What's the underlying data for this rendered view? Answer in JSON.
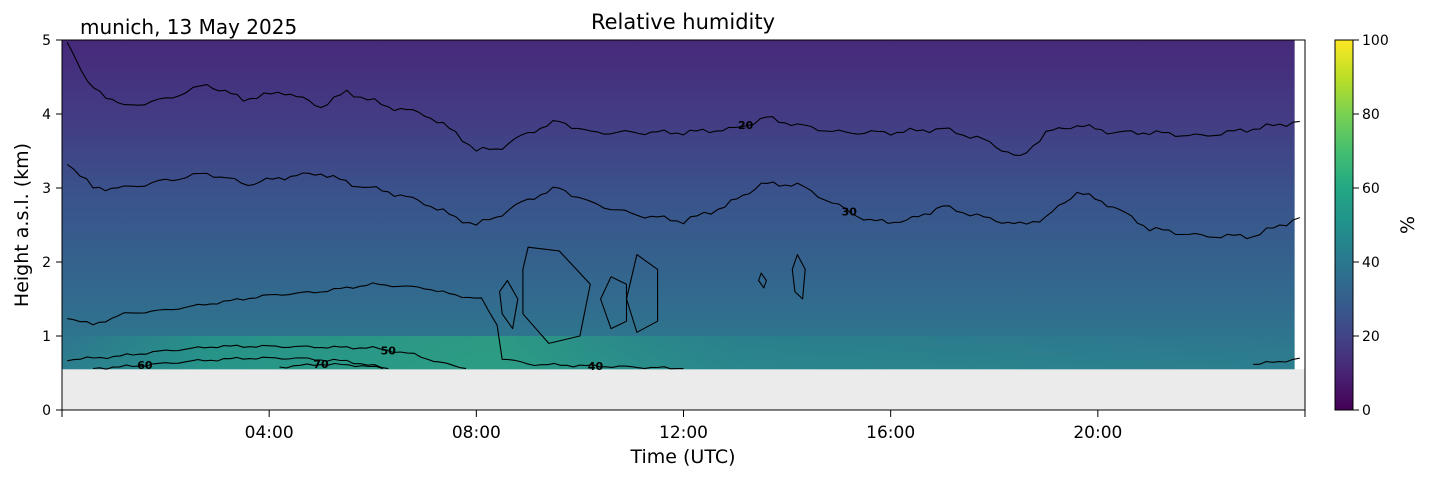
{
  "header": {
    "location_date": "munich, 13 May 2025"
  },
  "chart_data": {
    "type": "heatmap",
    "title": "Relative humidity",
    "xlabel": "Time (UTC)",
    "ylabel": "Height a.s.l. (km)",
    "xlim_hours": [
      0,
      24
    ],
    "ylim_km": [
      0,
      5
    ],
    "x_ticks": [
      {
        "value": 4,
        "label": "04:00"
      },
      {
        "value": 8,
        "label": "08:00"
      },
      {
        "value": 12,
        "label": "12:00"
      },
      {
        "value": 16,
        "label": "16:00"
      },
      {
        "value": 20,
        "label": "20:00"
      }
    ],
    "y_ticks": [
      0,
      1,
      2,
      3,
      4,
      5
    ],
    "data_bottom_km": 0.55,
    "no_data_color": "#ebebeb",
    "colormap": "viridis",
    "colorbar": {
      "label": "%",
      "range": [
        0,
        100
      ],
      "ticks": [
        0,
        20,
        40,
        60,
        80,
        100
      ]
    },
    "contours": [
      {
        "level": 20,
        "label_at_hour": 13.2,
        "points": [
          [
            0.1,
            5.0
          ],
          [
            0.5,
            4.4
          ],
          [
            1.2,
            4.1
          ],
          [
            2.0,
            4.2
          ],
          [
            2.8,
            4.4
          ],
          [
            3.5,
            4.2
          ],
          [
            4.3,
            4.3
          ],
          [
            5.0,
            4.1
          ],
          [
            5.5,
            4.3
          ],
          [
            6.3,
            4.1
          ],
          [
            7.0,
            4.0
          ],
          [
            7.6,
            3.75
          ],
          [
            8.0,
            3.5
          ],
          [
            8.5,
            3.55
          ],
          [
            9.0,
            3.75
          ],
          [
            9.6,
            3.9
          ],
          [
            10.2,
            3.75
          ],
          [
            11.0,
            3.75
          ],
          [
            12.0,
            3.75
          ],
          [
            13.0,
            3.8
          ],
          [
            13.6,
            3.95
          ],
          [
            14.2,
            3.85
          ],
          [
            15.0,
            3.75
          ],
          [
            16.0,
            3.75
          ],
          [
            17.0,
            3.8
          ],
          [
            17.8,
            3.65
          ],
          [
            18.5,
            3.4
          ],
          [
            19.0,
            3.75
          ],
          [
            19.6,
            3.85
          ],
          [
            20.3,
            3.75
          ],
          [
            21.0,
            3.75
          ],
          [
            22.0,
            3.7
          ],
          [
            23.0,
            3.8
          ],
          [
            23.9,
            3.9
          ]
        ]
      },
      {
        "level": 30,
        "label_at_hour": 15.2,
        "points": [
          [
            0.1,
            3.35
          ],
          [
            0.6,
            3.0
          ],
          [
            1.2,
            3.0
          ],
          [
            2.0,
            3.1
          ],
          [
            2.8,
            3.2
          ],
          [
            3.6,
            3.05
          ],
          [
            4.3,
            3.15
          ],
          [
            5.0,
            3.2
          ],
          [
            5.6,
            3.05
          ],
          [
            6.3,
            2.95
          ],
          [
            7.0,
            2.8
          ],
          [
            7.6,
            2.6
          ],
          [
            8.0,
            2.5
          ],
          [
            8.5,
            2.65
          ],
          [
            9.0,
            2.85
          ],
          [
            9.6,
            3.0
          ],
          [
            10.2,
            2.8
          ],
          [
            11.0,
            2.65
          ],
          [
            12.0,
            2.55
          ],
          [
            12.8,
            2.75
          ],
          [
            13.5,
            3.05
          ],
          [
            14.2,
            3.05
          ],
          [
            15.0,
            2.75
          ],
          [
            15.6,
            2.55
          ],
          [
            16.3,
            2.55
          ],
          [
            17.0,
            2.75
          ],
          [
            17.8,
            2.6
          ],
          [
            18.5,
            2.5
          ],
          [
            19.0,
            2.6
          ],
          [
            19.6,
            2.95
          ],
          [
            20.3,
            2.75
          ],
          [
            21.0,
            2.45
          ],
          [
            22.0,
            2.35
          ],
          [
            23.0,
            2.35
          ],
          [
            23.9,
            2.6
          ]
        ]
      },
      {
        "level": 40,
        "label_at_hour": 10.3,
        "points": [
          [
            0.1,
            1.25
          ],
          [
            0.6,
            1.15
          ],
          [
            1.2,
            1.3
          ],
          [
            2.0,
            1.35
          ],
          [
            3.0,
            1.45
          ],
          [
            4.0,
            1.55
          ],
          [
            5.0,
            1.6
          ],
          [
            6.0,
            1.7
          ],
          [
            7.0,
            1.65
          ],
          [
            7.6,
            1.55
          ],
          [
            8.1,
            1.5
          ],
          [
            8.4,
            1.15
          ],
          [
            8.5,
            0.7
          ],
          [
            9.0,
            0.62
          ],
          [
            10.0,
            0.6
          ],
          [
            11.0,
            0.58
          ],
          [
            12.0,
            0.56
          ]
        ]
      },
      {
        "level": 40,
        "label_at_hour": null,
        "points": [
          [
            23.0,
            0.62
          ],
          [
            23.5,
            0.65
          ],
          [
            23.9,
            0.7
          ]
        ]
      },
      {
        "level": 50,
        "label_at_hour": 6.3,
        "points": [
          [
            0.1,
            0.68
          ],
          [
            1.0,
            0.72
          ],
          [
            2.0,
            0.8
          ],
          [
            3.0,
            0.86
          ],
          [
            4.0,
            0.86
          ],
          [
            5.0,
            0.85
          ],
          [
            6.0,
            0.84
          ],
          [
            6.8,
            0.75
          ],
          [
            7.3,
            0.64
          ],
          [
            7.8,
            0.56
          ]
        ]
      },
      {
        "level": 60,
        "label_at_hour": 1.6,
        "points": [
          [
            0.6,
            0.56
          ],
          [
            1.5,
            0.6
          ],
          [
            2.5,
            0.66
          ],
          [
            3.5,
            0.7
          ],
          [
            4.5,
            0.7
          ],
          [
            5.5,
            0.66
          ],
          [
            6.3,
            0.56
          ]
        ]
      },
      {
        "level": 70,
        "label_at_hour": 5.0,
        "points": [
          [
            4.2,
            0.58
          ],
          [
            5.0,
            0.62
          ],
          [
            5.8,
            0.6
          ],
          [
            6.2,
            0.56
          ]
        ]
      }
    ],
    "blobs": [
      {
        "points": [
          [
            9.0,
            2.2
          ],
          [
            9.6,
            2.15
          ],
          [
            10.2,
            1.7
          ],
          [
            10.0,
            1.0
          ],
          [
            9.4,
            0.9
          ],
          [
            8.9,
            1.3
          ],
          [
            8.9,
            1.9
          ]
        ]
      },
      {
        "points": [
          [
            8.6,
            1.75
          ],
          [
            8.8,
            1.5
          ],
          [
            8.7,
            1.1
          ],
          [
            8.5,
            1.3
          ],
          [
            8.45,
            1.6
          ]
        ]
      },
      {
        "points": [
          [
            10.6,
            1.8
          ],
          [
            10.9,
            1.7
          ],
          [
            10.9,
            1.2
          ],
          [
            10.6,
            1.1
          ],
          [
            10.4,
            1.5
          ]
        ]
      },
      {
        "points": [
          [
            11.1,
            2.1
          ],
          [
            11.5,
            1.9
          ],
          [
            11.5,
            1.2
          ],
          [
            11.1,
            1.05
          ],
          [
            10.9,
            1.5
          ]
        ]
      },
      {
        "points": [
          [
            13.5,
            1.85
          ],
          [
            13.6,
            1.75
          ],
          [
            13.55,
            1.65
          ],
          [
            13.45,
            1.75
          ]
        ]
      },
      {
        "points": [
          [
            14.2,
            2.1
          ],
          [
            14.35,
            1.9
          ],
          [
            14.3,
            1.5
          ],
          [
            14.15,
            1.6
          ],
          [
            14.1,
            1.9
          ]
        ]
      }
    ]
  }
}
